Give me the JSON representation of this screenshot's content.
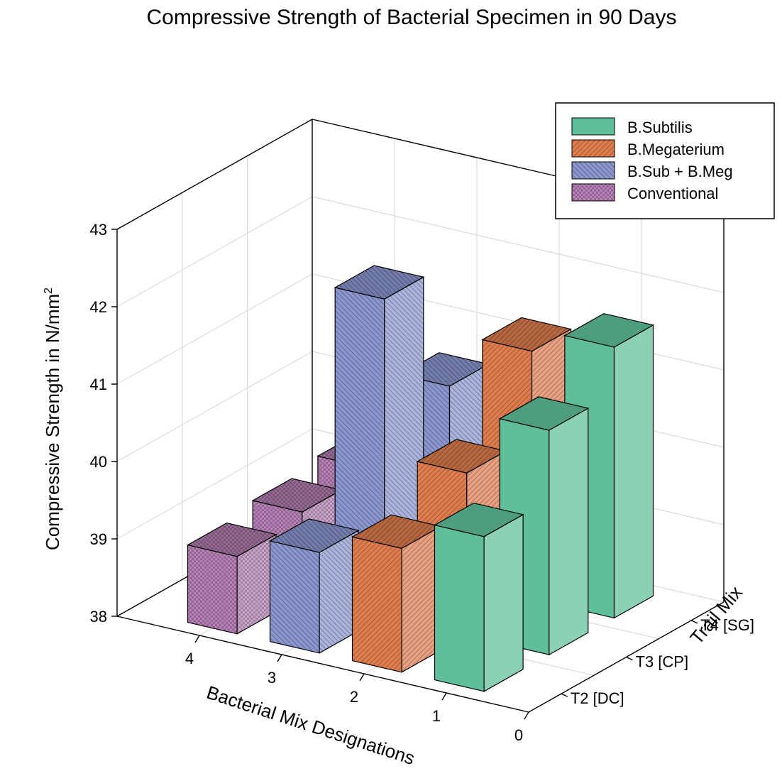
{
  "chart_data": {
    "type": "bar",
    "subtype": "3d-grouped-bar",
    "title": "Compressive Strength of Bacterial Specimen in 90 Days",
    "ylabel": "Compressive Strength in N/mm",
    "ylabel_superscript": "2",
    "xlabel": "Bacterial Mix Designations",
    "zlabel": "Trail Mix",
    "ylim": [
      38,
      43
    ],
    "y_ticks": [
      "38",
      "39",
      "40",
      "41",
      "42",
      "43"
    ],
    "x_ticks": [
      "0",
      "1",
      "2",
      "3",
      "4"
    ],
    "z_ticks": [
      "T2 [DC]",
      "T3 [CP]",
      "T4 [SG]"
    ],
    "grid": true,
    "legend_position": "top-right",
    "series": [
      {
        "name": "B.Subtilis",
        "x": 1,
        "color": "#5fbf9a",
        "pattern": "solid",
        "values": [
          {
            "trial": "T2 [DC]",
            "value": 40.0
          },
          {
            "trial": "T3 [CP]",
            "value": 40.9
          },
          {
            "trial": "T4 [SG]",
            "value": 41.5
          }
        ]
      },
      {
        "name": "B.Megaterium",
        "x": 2,
        "color": "#e07d4e",
        "pattern": "diagonal",
        "values": [
          {
            "trial": "T2 [DC]",
            "value": 39.6
          },
          {
            "trial": "T3 [CP]",
            "value": 40.1
          },
          {
            "trial": "T4 [SG]",
            "value": 41.2
          }
        ]
      },
      {
        "name": "B.Sub + B.Meg",
        "x": 3,
        "color": "#8b97cf",
        "pattern": "backdiagonal",
        "values": [
          {
            "trial": "T2 [DC]",
            "value": 39.3
          },
          {
            "trial": "T3 [CP]",
            "value": 42.1
          },
          {
            "trial": "T4 [SG]",
            "value": 40.5
          }
        ]
      },
      {
        "name": "Conventional",
        "x": 4,
        "color": "#b982b8",
        "pattern": "checker",
        "values": [
          {
            "trial": "T2 [DC]",
            "value": 39.0
          },
          {
            "trial": "T3 [CP]",
            "value": 39.1
          },
          {
            "trial": "T4 [SG]",
            "value": 39.2
          }
        ]
      }
    ]
  }
}
